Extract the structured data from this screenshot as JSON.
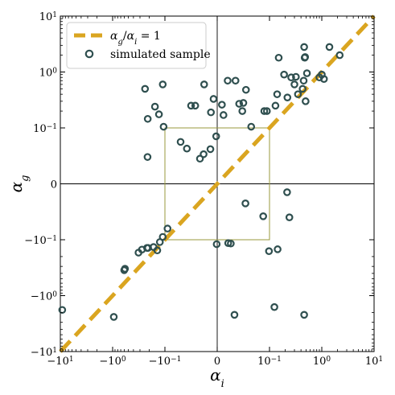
{
  "chart_data": {
    "type": "scatter",
    "x_scale": "symlog",
    "y_scale": "symlog",
    "xlim": [
      -10,
      10
    ],
    "ylim": [
      -10,
      10
    ],
    "linthresh": 0.1,
    "xlabel_base": "α",
    "xlabel_sub": "i",
    "ylabel_base": "α",
    "ylabel_sub": "g",
    "x_ticks": [
      {
        "value": -10,
        "base": "−10",
        "exp": "1"
      },
      {
        "value": -1,
        "base": "−10",
        "exp": "0"
      },
      {
        "value": -0.1,
        "base": "−10",
        "exp": "−1"
      },
      {
        "value": 0,
        "base": "0",
        "exp": ""
      },
      {
        "value": 0.1,
        "base": "10",
        "exp": "−1"
      },
      {
        "value": 1,
        "base": "10",
        "exp": "0"
      },
      {
        "value": 10,
        "base": "10",
        "exp": "1"
      }
    ],
    "y_ticks": [
      {
        "value": -10,
        "base": "−10",
        "exp": "1"
      },
      {
        "value": -1,
        "base": "−10",
        "exp": "0"
      },
      {
        "value": -0.1,
        "base": "−10",
        "exp": "−1"
      },
      {
        "value": 0,
        "base": "0",
        "exp": ""
      },
      {
        "value": 0.1,
        "base": "10",
        "exp": "−1"
      },
      {
        "value": 1,
        "base": "10",
        "exp": "0"
      },
      {
        "value": 10,
        "base": "10",
        "exp": "1"
      }
    ],
    "reference_box": {
      "x": [
        -0.1,
        0.1
      ],
      "y": [
        -0.1,
        0.1
      ],
      "color": "#9a9a3c"
    },
    "identity_line": {
      "label_base": "α",
      "label_sub1": "g",
      "label_sub2": "i",
      "label_rhs": "= 1",
      "color": "#daa520"
    },
    "series": [
      {
        "name": "simulated sample",
        "marker_color": "#2f4f4f",
        "points": [
          {
            "x": -0.07,
            "y": 0.075
          },
          {
            "x": -0.058,
            "y": 0.063
          },
          {
            "x": -0.033,
            "y": 0.045
          },
          {
            "x": -0.026,
            "y": 0.053
          },
          {
            "x": -0.013,
            "y": 0.062
          },
          {
            "x": -0.002,
            "y": 0.085
          },
          {
            "x": -0.215,
            "y": 0.048
          },
          {
            "x": -0.106,
            "y": 0.105
          },
          {
            "x": -0.13,
            "y": 0.175
          },
          {
            "x": -0.155,
            "y": 0.24
          },
          {
            "x": -0.213,
            "y": 0.145
          },
          {
            "x": -0.24,
            "y": 0.5
          },
          {
            "x": -0.11,
            "y": 0.6
          },
          {
            "x": -0.05,
            "y": 0.25
          },
          {
            "x": -0.042,
            "y": 0.25
          },
          {
            "x": -0.025,
            "y": 0.6
          },
          {
            "x": -0.007,
            "y": 0.33
          },
          {
            "x": -0.012,
            "y": 0.19
          },
          {
            "x": 0.009,
            "y": 0.26
          },
          {
            "x": 0.012,
            "y": 0.17
          },
          {
            "x": 0.02,
            "y": 0.7
          },
          {
            "x": 0.035,
            "y": 0.7
          },
          {
            "x": 0.042,
            "y": 0.27
          },
          {
            "x": 0.048,
            "y": 0.2
          },
          {
            "x": 0.055,
            "y": 0.48
          },
          {
            "x": 0.05,
            "y": 0.28
          },
          {
            "x": 0.065,
            "y": 0.105
          },
          {
            "x": 0.09,
            "y": 0.2
          },
          {
            "x": 0.095,
            "y": 0.2
          },
          {
            "x": 0.13,
            "y": 0.25
          },
          {
            "x": 0.14,
            "y": 0.4
          },
          {
            "x": 0.15,
            "y": 1.8
          },
          {
            "x": 0.19,
            "y": 0.9
          },
          {
            "x": 0.22,
            "y": 0.35
          },
          {
            "x": 0.26,
            "y": 0.8
          },
          {
            "x": 0.3,
            "y": 0.6
          },
          {
            "x": 0.32,
            "y": 0.82
          },
          {
            "x": 0.35,
            "y": 0.4
          },
          {
            "x": 0.43,
            "y": 0.5
          },
          {
            "x": 0.45,
            "y": 0.7
          },
          {
            "x": 0.47,
            "y": 1.8
          },
          {
            "x": 0.48,
            "y": 1.85
          },
          {
            "x": 0.46,
            "y": 2.8
          },
          {
            "x": 0.49,
            "y": 0.3
          },
          {
            "x": 0.52,
            "y": 0.95
          },
          {
            "x": 0.9,
            "y": 0.8
          },
          {
            "x": 1.0,
            "y": 0.9
          },
          {
            "x": 1.1,
            "y": 0.75
          },
          {
            "x": 1.4,
            "y": 2.8
          },
          {
            "x": 2.2,
            "y": 2.0
          },
          {
            "x": -0.095,
            "y": -0.08
          },
          {
            "x": -0.11,
            "y": -0.095
          },
          {
            "x": -0.14,
            "y": -0.155
          },
          {
            "x": -0.125,
            "y": -0.11
          },
          {
            "x": -0.165,
            "y": -0.135
          },
          {
            "x": -0.21,
            "y": -0.14
          },
          {
            "x": -0.22,
            "y": -0.14
          },
          {
            "x": -0.275,
            "y": -0.15
          },
          {
            "x": -0.32,
            "y": -0.17
          },
          {
            "x": -0.58,
            "y": -0.33
          },
          {
            "x": -0.6,
            "y": -0.35
          },
          {
            "x": -9.2,
            "y": -1.8
          },
          {
            "x": -0.95,
            "y": -2.4
          },
          {
            "x": -0.001,
            "y": -0.12
          },
          {
            "x": 0.021,
            "y": -0.115
          },
          {
            "x": 0.026,
            "y": -0.117
          },
          {
            "x": 0.054,
            "y": -0.035
          },
          {
            "x": 0.088,
            "y": -0.058
          },
          {
            "x": 0.099,
            "y": -0.16
          },
          {
            "x": 0.143,
            "y": -0.148
          },
          {
            "x": 0.217,
            "y": -0.015
          },
          {
            "x": 0.24,
            "y": -0.06
          },
          {
            "x": 0.033,
            "y": -2.2
          },
          {
            "x": 0.124,
            "y": -1.6
          },
          {
            "x": 0.46,
            "y": -2.2
          }
        ]
      }
    ],
    "grid": false,
    "legend_position": "top-left"
  }
}
